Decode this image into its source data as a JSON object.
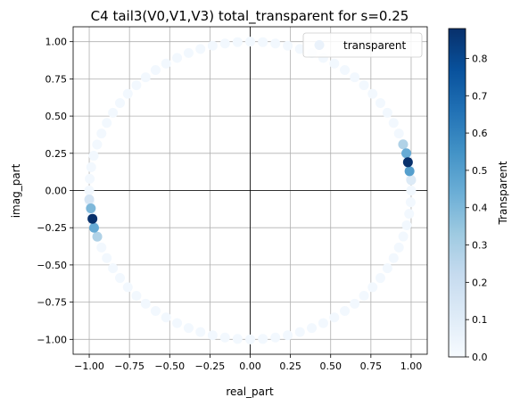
{
  "chart_data": {
    "type": "scatter",
    "title": "C4 tail3(V0,V1,V3) total_transparent for s=0.25",
    "xlabel": "real_part",
    "ylabel": "imag_part",
    "xlim": [
      -1.1,
      1.1
    ],
    "ylim": [
      -1.1,
      1.1
    ],
    "xticks": [
      -1.0,
      -0.75,
      -0.5,
      -0.25,
      0.0,
      0.25,
      0.5,
      0.75,
      1.0
    ],
    "xtick_labels": [
      "−1.00",
      "−0.75",
      "−0.50",
      "−0.25",
      "0.00",
      "0.25",
      "0.50",
      "0.75",
      "1.00"
    ],
    "yticks": [
      -1.0,
      -0.75,
      -0.5,
      -0.25,
      0.0,
      0.25,
      0.5,
      0.75,
      1.0
    ],
    "ytick_labels": [
      "−1.00",
      "−0.75",
      "−0.50",
      "−0.25",
      "0.00",
      "0.25",
      "0.50",
      "0.75",
      "1.00"
    ],
    "grid": true,
    "reference_lines": [
      {
        "axis": "x",
        "value": 0
      },
      {
        "axis": "y",
        "value": 0
      }
    ],
    "colormap": "Blues",
    "legend": {
      "position": "upper-right",
      "entries": [
        "transparent"
      ]
    },
    "colorbar": {
      "label": "Transparent",
      "range": [
        0.0,
        0.88
      ],
      "ticks": [
        0.0,
        0.1,
        0.2,
        0.3,
        0.4,
        0.5,
        0.6,
        0.7,
        0.8
      ],
      "tick_labels": [
        "0.0",
        "0.1",
        "0.2",
        "0.3",
        "0.4",
        "0.5",
        "0.6",
        "0.7",
        "0.8"
      ]
    },
    "series": [
      {
        "name": "transparent",
        "unit_circle_points": 80,
        "baseline_value": 0.02,
        "highlighted_points": [
          {
            "x": 0.98,
            "y": 0.19,
            "value": 0.88
          },
          {
            "x": 0.97,
            "y": 0.25,
            "value": 0.45
          },
          {
            "x": 0.95,
            "y": 0.31,
            "value": 0.28
          },
          {
            "x": 0.99,
            "y": 0.13,
            "value": 0.5
          },
          {
            "x": 1.0,
            "y": 0.07,
            "value": 0.12
          },
          {
            "x": -0.98,
            "y": -0.19,
            "value": 0.88
          },
          {
            "x": -0.97,
            "y": -0.25,
            "value": 0.45
          },
          {
            "x": -0.95,
            "y": -0.31,
            "value": 0.28
          },
          {
            "x": -0.99,
            "y": -0.12,
            "value": 0.4
          },
          {
            "x": -1.0,
            "y": -0.06,
            "value": 0.15
          }
        ]
      }
    ]
  }
}
